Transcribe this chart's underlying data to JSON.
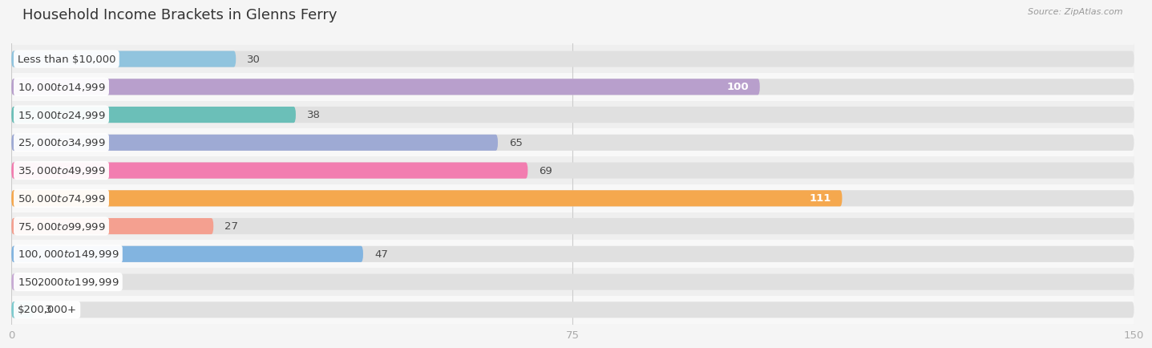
{
  "title": "Household Income Brackets in Glenns Ferry",
  "source": "Source: ZipAtlas.com",
  "categories": [
    "Less than $10,000",
    "$10,000 to $14,999",
    "$15,000 to $24,999",
    "$25,000 to $34,999",
    "$35,000 to $49,999",
    "$50,000 to $74,999",
    "$75,000 to $99,999",
    "$100,000 to $149,999",
    "$150,000 to $199,999",
    "$200,000+"
  ],
  "values": [
    30,
    100,
    38,
    65,
    69,
    111,
    27,
    47,
    2,
    3
  ],
  "bar_colors": [
    "#91c4de",
    "#b89fcc",
    "#6bbfb8",
    "#9eaad4",
    "#f27db0",
    "#f5a84e",
    "#f4a090",
    "#82b4e0",
    "#c8aad4",
    "#7ecbcf"
  ],
  "row_bg_colors": [
    "#efefef",
    "#f8f8f8"
  ],
  "bar_bg_color": "#e0e0e0",
  "xlim": [
    0,
    150
  ],
  "xticks": [
    0,
    75,
    150
  ],
  "background_color": "#f5f5f5",
  "title_fontsize": 13,
  "label_fontsize": 9.5,
  "value_fontsize": 9.5,
  "bar_height": 0.58,
  "figsize": [
    14.06,
    4.5
  ]
}
